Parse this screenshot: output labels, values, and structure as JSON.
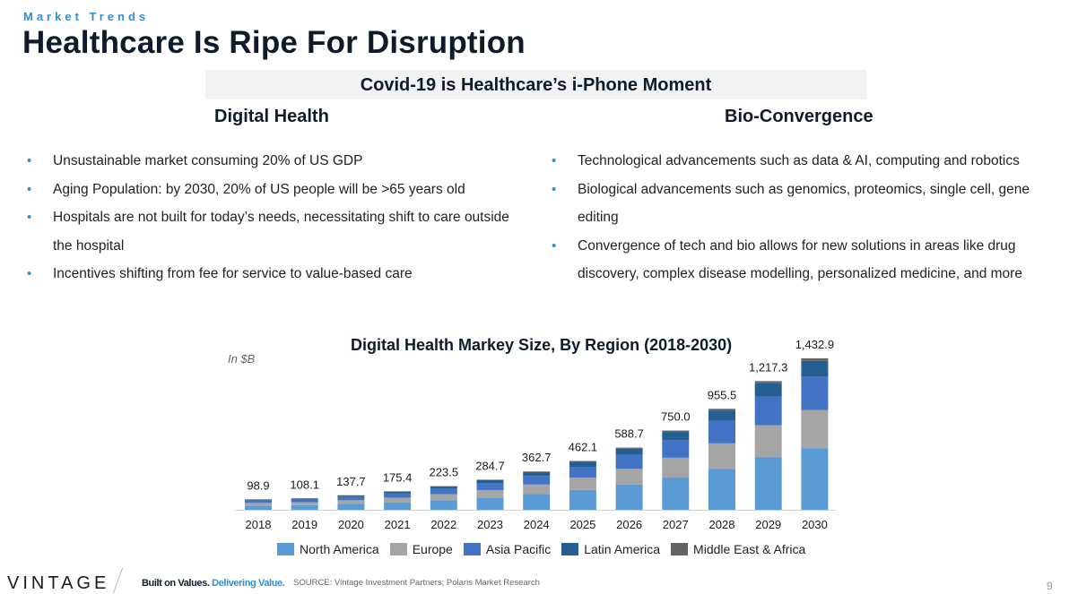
{
  "header": {
    "eyebrow": "Market Trends",
    "title": "Healthcare Is Ripe For Disruption"
  },
  "banner": "Covid-19 is Healthcare’s i-Phone Moment",
  "columns": {
    "left": {
      "heading": "Digital Health",
      "bullets": [
        "Unsustainable market consuming 20% of US GDP",
        "Aging Population: by 2030, 20% of US people will be >65 years old",
        "Hospitals are not built for today’s needs, necessitating shift to care outside the hospital",
        "Incentives shifting from fee for service to value-based care"
      ]
    },
    "right": {
      "heading": "Bio-Convergence",
      "bullets": [
        "Technological advancements such as data & AI, computing and robotics",
        "Biological advancements such as genomics, proteomics, single cell, gene editing",
        "Convergence of tech and bio allows for new solutions in areas like drug discovery, complex disease modelling, personalized medicine, and more"
      ]
    }
  },
  "bullet_glyph": "•",
  "chart_data": {
    "type": "bar",
    "stacked": true,
    "title": "Digital Health Markey Size, By Region (2018-2030)",
    "unit_note": "In $B",
    "categories": [
      "2018",
      "2019",
      "2020",
      "2021",
      "2022",
      "2023",
      "2024",
      "2025",
      "2026",
      "2027",
      "2028",
      "2029",
      "2030"
    ],
    "totals": [
      98.9,
      108.1,
      137.7,
      175.4,
      223.5,
      284.7,
      362.7,
      462.1,
      588.7,
      750.0,
      955.5,
      1217.3,
      1432.9
    ],
    "total_labels": [
      "98.9",
      "108.1",
      "137.7",
      "175.4",
      "223.5",
      "284.7",
      "362.7",
      "462.1",
      "588.7",
      "750.0",
      "955.5",
      "1,217.3",
      "1,432.9"
    ],
    "series": [
      {
        "name": "North America",
        "color": "#5b9bd5",
        "values": [
          40,
          44,
          56,
          71,
          91,
          116,
          148,
          188,
          240,
          305,
          389,
          496,
          584
        ]
      },
      {
        "name": "Europe",
        "color": "#a5a5a5",
        "values": [
          25,
          27,
          34,
          44,
          56,
          71,
          91,
          116,
          147,
          188,
          240,
          305,
          359
        ]
      },
      {
        "name": "Asia Pacific",
        "color": "#4472c4",
        "values": [
          22,
          24,
          31,
          39,
          50,
          64,
          81,
          103,
          132,
          168,
          214,
          272,
          320
        ]
      },
      {
        "name": "Latin America",
        "color": "#255e91",
        "values": [
          10,
          11,
          14,
          18,
          23,
          29,
          37,
          47,
          60,
          76,
          97,
          124,
          146
        ]
      },
      {
        "name": "Middle East & Africa",
        "color": "#636363",
        "values": [
          1.9,
          2.1,
          2.7,
          3.4,
          3.5,
          4.7,
          5.7,
          8.1,
          9.7,
          13.0,
          15.5,
          20.3,
          23.9
        ]
      }
    ],
    "ylim": [
      0,
      1432.9
    ],
    "grid": false,
    "legend_position": "bottom"
  },
  "footer": {
    "logo": "VINTAGE",
    "tagline_a": "Built on Values.",
    "tagline_b": "Delivering Value.",
    "source": "SOURCE: Vintage Investment Partners; Polaris Market Research",
    "page_number": "9"
  }
}
